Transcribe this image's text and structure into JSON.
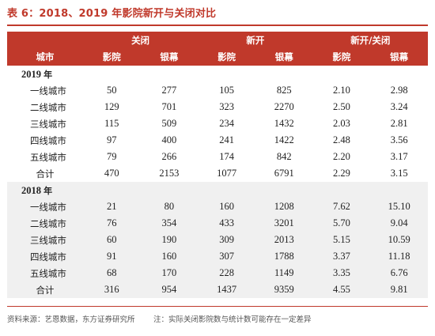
{
  "title": "表 6：2018、2019 年影院新开与关闭对比",
  "header": {
    "group_row": [
      "关闭",
      "新开",
      "新开/关闭"
    ],
    "col_label": "城市",
    "sub_row": [
      "影院",
      "银幕",
      "影院",
      "银幕",
      "影院",
      "银幕"
    ]
  },
  "sections": [
    {
      "year": "2019",
      "year_suffix": "年",
      "rows": [
        {
          "city": "一线城市",
          "cells": [
            "50",
            "277",
            "105",
            "825",
            "2.10",
            "2.98"
          ]
        },
        {
          "city": "二线城市",
          "cells": [
            "129",
            "701",
            "323",
            "2270",
            "2.50",
            "3.24"
          ]
        },
        {
          "city": "三线城市",
          "cells": [
            "115",
            "509",
            "234",
            "1432",
            "2.03",
            "2.81"
          ]
        },
        {
          "city": "四线城市",
          "cells": [
            "97",
            "400",
            "241",
            "1422",
            "2.48",
            "3.56"
          ]
        },
        {
          "city": "五线城市",
          "cells": [
            "79",
            "266",
            "174",
            "842",
            "2.20",
            "3.17"
          ]
        },
        {
          "city": "合计",
          "cells": [
            "470",
            "2153",
            "1077",
            "6791",
            "2.29",
            "3.15"
          ]
        }
      ]
    },
    {
      "year": "2018",
      "year_suffix": "年",
      "rows": [
        {
          "city": "一线城市",
          "cells": [
            "21",
            "80",
            "160",
            "1208",
            "7.62",
            "15.10"
          ]
        },
        {
          "city": "二线城市",
          "cells": [
            "76",
            "354",
            "433",
            "3201",
            "5.70",
            "9.04"
          ]
        },
        {
          "city": "三线城市",
          "cells": [
            "60",
            "190",
            "309",
            "2013",
            "5.15",
            "10.59"
          ]
        },
        {
          "city": "四线城市",
          "cells": [
            "91",
            "160",
            "307",
            "1788",
            "3.37",
            "11.18"
          ]
        },
        {
          "city": "五线城市",
          "cells": [
            "68",
            "170",
            "228",
            "1149",
            "3.35",
            "6.76"
          ]
        },
        {
          "city": "合计",
          "cells": [
            "316",
            "954",
            "1437",
            "9359",
            "4.55",
            "9.81"
          ]
        }
      ]
    }
  ],
  "footer": {
    "source": "资料来源：艺恩数据，东方证券研究所",
    "note": "注：实际关闭影院数与统计数可能存在一定差异"
  },
  "colors": {
    "accent": "#c0392b",
    "shade": "#f0f0f0"
  }
}
